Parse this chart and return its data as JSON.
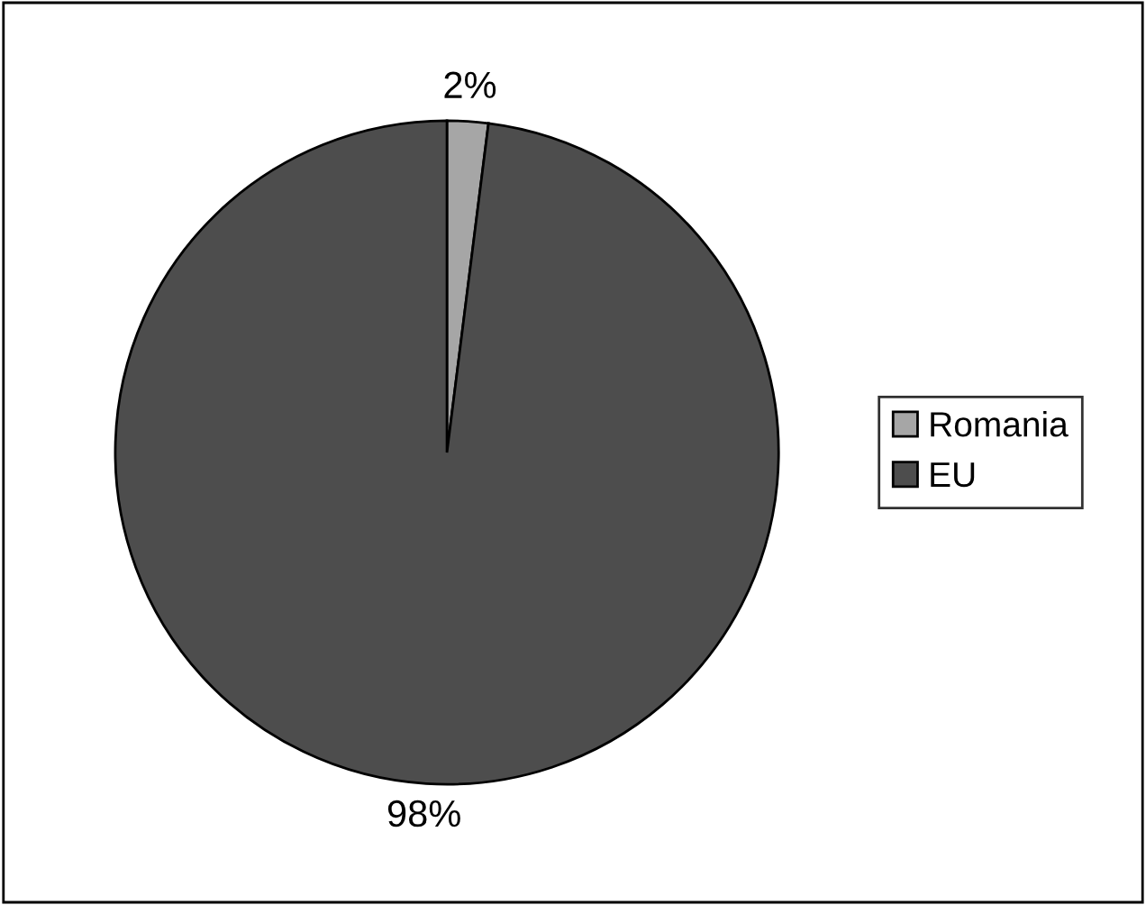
{
  "chart_data": {
    "type": "pie",
    "categories": [
      "Romania",
      "EU"
    ],
    "values": [
      2,
      98
    ],
    "colors": [
      "#a6a6a6",
      "#4d4d4d"
    ],
    "value_labels": [
      "2%",
      "98%"
    ],
    "legend": "right"
  }
}
